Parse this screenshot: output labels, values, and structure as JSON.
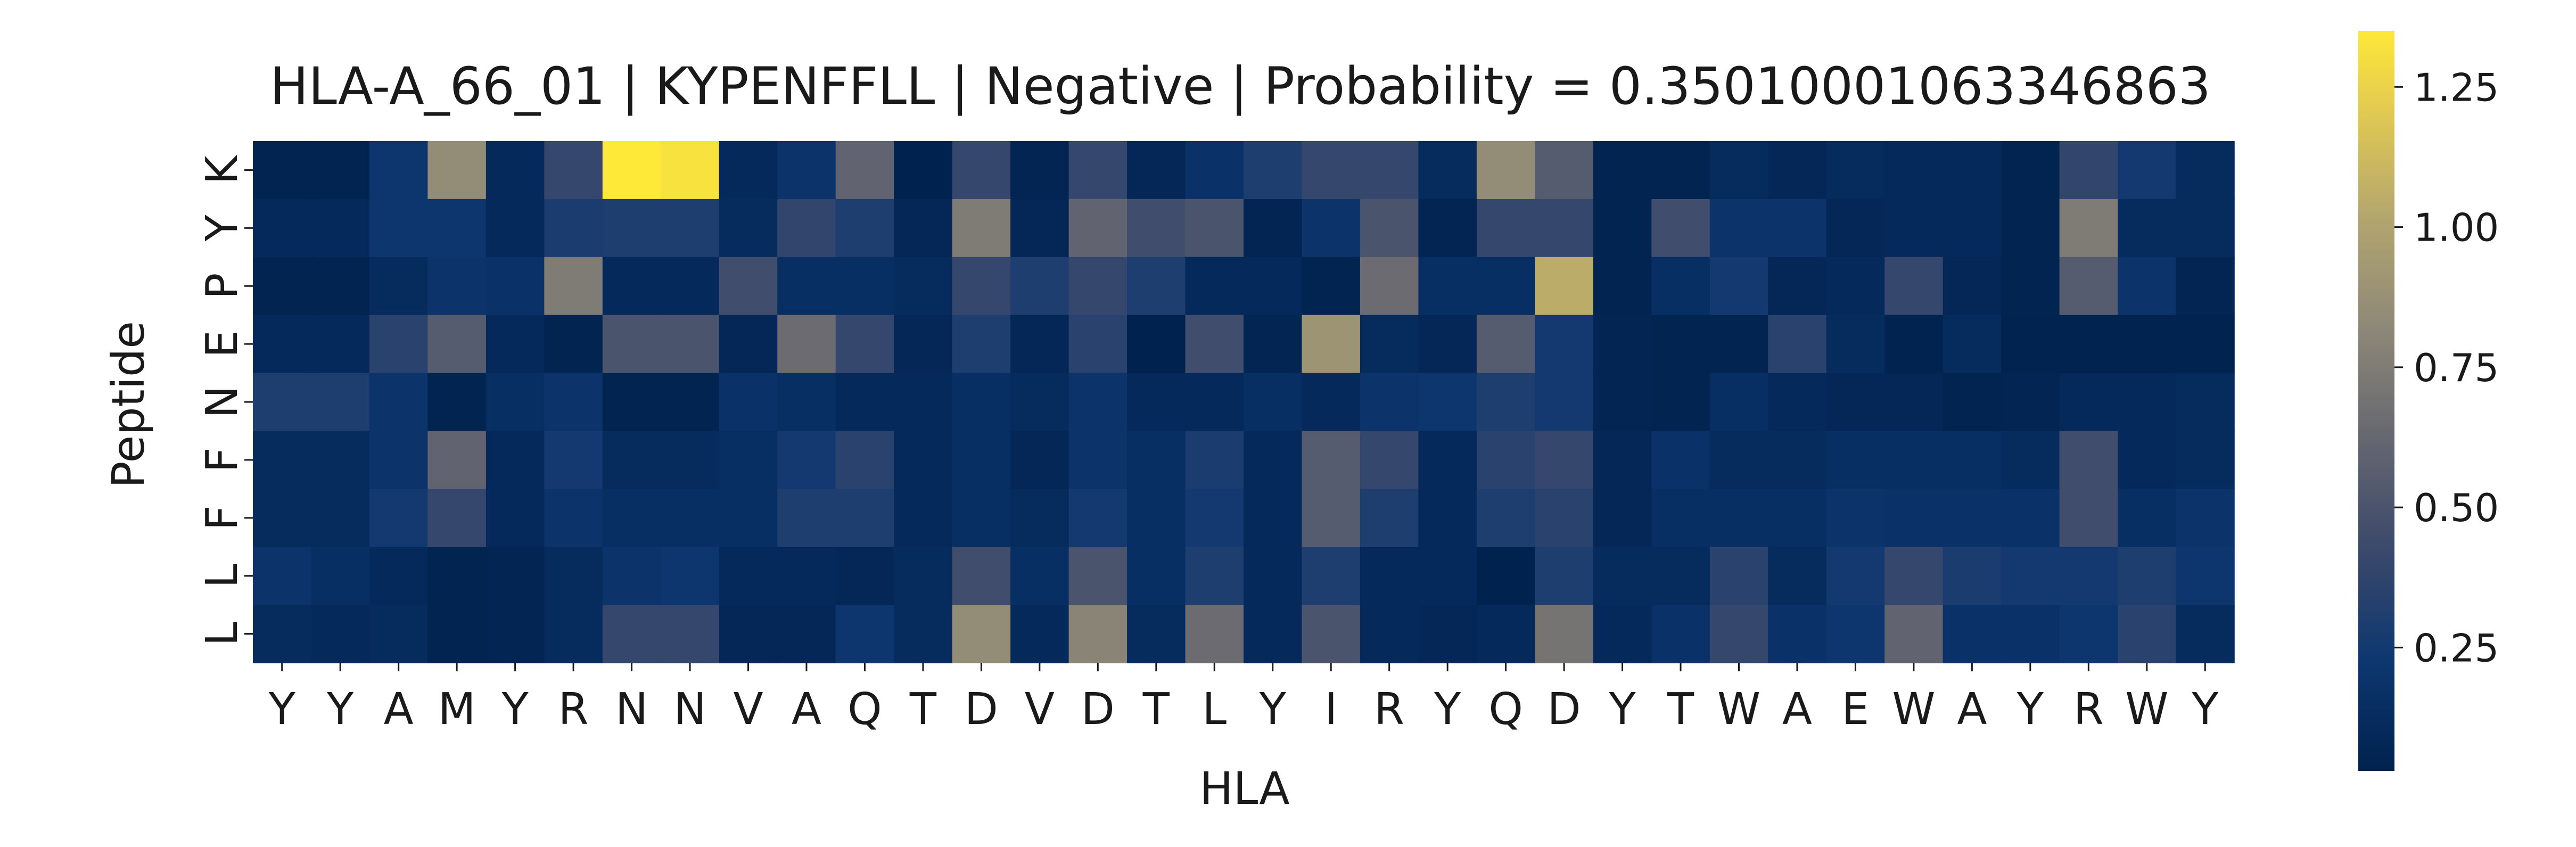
{
  "chart_data": {
    "type": "heatmap",
    "title": "HLA-A_66_01 | KYPENFFLL | Negative | Probability = 0.35010001063346863",
    "xlabel": "HLA",
    "ylabel": "Peptide",
    "x_categories": [
      "Y",
      "Y",
      "A",
      "M",
      "Y",
      "R",
      "N",
      "N",
      "V",
      "A",
      "Q",
      "T",
      "D",
      "V",
      "D",
      "T",
      "L",
      "Y",
      "I",
      "R",
      "Y",
      "Q",
      "D",
      "Y",
      "T",
      "W",
      "A",
      "E",
      "W",
      "A",
      "Y",
      "R",
      "W",
      "Y"
    ],
    "y_categories": [
      "K",
      "Y",
      "P",
      "E",
      "N",
      "F",
      "F",
      "L",
      "L"
    ],
    "colormap": "cividis",
    "colorbar": {
      "min": 0.03,
      "max": 1.35,
      "ticks": [
        0.25,
        0.5,
        0.75,
        1.0,
        1.25
      ],
      "tick_labels": [
        "0.25",
        "0.50",
        "0.75",
        "1.00",
        "1.25"
      ]
    },
    "values": [
      [
        0.05,
        0.05,
        0.22,
        0.85,
        0.1,
        0.4,
        1.35,
        1.32,
        0.1,
        0.2,
        0.6,
        0.03,
        0.4,
        0.06,
        0.4,
        0.08,
        0.18,
        0.3,
        0.4,
        0.4,
        0.12,
        0.85,
        0.55,
        0.05,
        0.05,
        0.12,
        0.08,
        0.12,
        0.1,
        0.1,
        0.05,
        0.38,
        0.25,
        0.12
      ],
      [
        0.1,
        0.1,
        0.22,
        0.22,
        0.1,
        0.28,
        0.3,
        0.3,
        0.12,
        0.38,
        0.3,
        0.08,
        0.75,
        0.08,
        0.6,
        0.45,
        0.5,
        0.06,
        0.2,
        0.5,
        0.06,
        0.4,
        0.4,
        0.05,
        0.45,
        0.2,
        0.2,
        0.08,
        0.1,
        0.1,
        0.05,
        0.75,
        0.12,
        0.12
      ],
      [
        0.05,
        0.05,
        0.12,
        0.2,
        0.18,
        0.75,
        0.1,
        0.1,
        0.45,
        0.15,
        0.15,
        0.12,
        0.4,
        0.3,
        0.4,
        0.3,
        0.1,
        0.1,
        0.05,
        0.65,
        0.15,
        0.15,
        1.05,
        0.05,
        0.15,
        0.25,
        0.08,
        0.1,
        0.4,
        0.08,
        0.05,
        0.55,
        0.2,
        0.06
      ],
      [
        0.1,
        0.1,
        0.35,
        0.55,
        0.1,
        0.05,
        0.5,
        0.5,
        0.08,
        0.65,
        0.4,
        0.08,
        0.3,
        0.08,
        0.35,
        0.03,
        0.45,
        0.06,
        0.9,
        0.12,
        0.08,
        0.55,
        0.25,
        0.06,
        0.05,
        0.05,
        0.35,
        0.12,
        0.04,
        0.12,
        0.04,
        0.04,
        0.04,
        0.04
      ],
      [
        0.3,
        0.3,
        0.2,
        0.05,
        0.15,
        0.2,
        0.05,
        0.05,
        0.18,
        0.15,
        0.1,
        0.1,
        0.15,
        0.12,
        0.2,
        0.1,
        0.1,
        0.15,
        0.1,
        0.2,
        0.22,
        0.3,
        0.25,
        0.06,
        0.05,
        0.15,
        0.1,
        0.08,
        0.08,
        0.05,
        0.06,
        0.1,
        0.1,
        0.12
      ],
      [
        0.12,
        0.12,
        0.2,
        0.6,
        0.1,
        0.25,
        0.12,
        0.12,
        0.15,
        0.25,
        0.35,
        0.1,
        0.15,
        0.08,
        0.2,
        0.15,
        0.28,
        0.1,
        0.55,
        0.4,
        0.1,
        0.35,
        0.4,
        0.08,
        0.18,
        0.12,
        0.12,
        0.15,
        0.15,
        0.15,
        0.12,
        0.45,
        0.1,
        0.12
      ],
      [
        0.12,
        0.12,
        0.25,
        0.4,
        0.1,
        0.2,
        0.15,
        0.15,
        0.15,
        0.3,
        0.3,
        0.1,
        0.15,
        0.12,
        0.25,
        0.15,
        0.25,
        0.1,
        0.55,
        0.3,
        0.1,
        0.3,
        0.35,
        0.08,
        0.15,
        0.15,
        0.15,
        0.2,
        0.18,
        0.18,
        0.18,
        0.45,
        0.15,
        0.2
      ],
      [
        0.2,
        0.15,
        0.1,
        0.05,
        0.06,
        0.12,
        0.2,
        0.22,
        0.1,
        0.1,
        0.08,
        0.12,
        0.45,
        0.15,
        0.5,
        0.15,
        0.3,
        0.1,
        0.3,
        0.1,
        0.1,
        0.03,
        0.3,
        0.12,
        0.12,
        0.35,
        0.12,
        0.25,
        0.4,
        0.28,
        0.25,
        0.25,
        0.3,
        0.22
      ],
      [
        0.12,
        0.1,
        0.12,
        0.05,
        0.06,
        0.12,
        0.4,
        0.4,
        0.08,
        0.08,
        0.22,
        0.12,
        0.85,
        0.1,
        0.8,
        0.12,
        0.65,
        0.1,
        0.5,
        0.1,
        0.08,
        0.1,
        0.7,
        0.1,
        0.18,
        0.4,
        0.18,
        0.22,
        0.6,
        0.18,
        0.18,
        0.22,
        0.35,
        0.12
      ]
    ]
  }
}
